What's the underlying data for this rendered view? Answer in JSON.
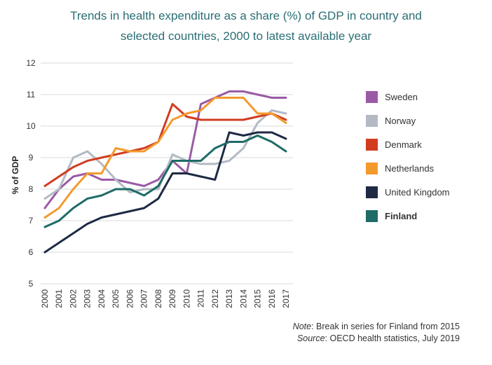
{
  "title": {
    "line1": "Trends in health expenditure as a share (%) of GDP in country and",
    "line2": "selected countries, 2000 to latest available year"
  },
  "notes": {
    "note_label": "Note",
    "note_text": ": Break in series for Finland from 2015",
    "source_label": "Source",
    "source_text": ": OECD health statistics, July 2019"
  },
  "chart_data": {
    "type": "line",
    "title": "Trends in health expenditure as a share (%) of GDP in country and selected countries, 2000 to latest available year",
    "xlabel": "",
    "ylabel": "% of GDP",
    "ylim": [
      5,
      12
    ],
    "yticks": [
      5,
      6,
      7,
      8,
      9,
      10,
      11,
      12
    ],
    "x": [
      "2000",
      "2001",
      "2002",
      "2003",
      "2004",
      "2005",
      "2006",
      "2007",
      "2008",
      "2009",
      "2010",
      "2011",
      "2012",
      "2013",
      "2014",
      "2015",
      "2016",
      "2017"
    ],
    "grid": "horizontal",
    "legend_position": "right",
    "series": [
      {
        "name": "Sweden",
        "color": "#9b5aa6",
        "bold": false,
        "values": [
          7.4,
          8.0,
          8.4,
          8.5,
          8.3,
          8.3,
          8.2,
          8.1,
          8.3,
          8.9,
          8.5,
          10.7,
          10.9,
          11.1,
          11.1,
          11.0,
          10.9,
          10.9
        ]
      },
      {
        "name": "Norway",
        "color": "#b3bac4",
        "bold": false,
        "values": [
          7.7,
          8.0,
          9.0,
          9.2,
          8.8,
          8.3,
          7.9,
          8.0,
          8.0,
          9.1,
          8.9,
          8.8,
          8.8,
          8.9,
          9.3,
          10.1,
          10.5,
          10.4
        ]
      },
      {
        "name": "Denmark",
        "color": "#d13c20",
        "bold": false,
        "values": [
          8.1,
          8.4,
          8.7,
          8.9,
          9.0,
          9.1,
          9.2,
          9.3,
          9.5,
          10.7,
          10.3,
          10.2,
          10.2,
          10.2,
          10.2,
          10.3,
          10.4,
          10.2
        ]
      },
      {
        "name": "Netherlands",
        "color": "#f39a2d",
        "bold": false,
        "values": [
          7.1,
          7.4,
          8.0,
          8.5,
          8.5,
          9.3,
          9.2,
          9.2,
          9.5,
          10.2,
          10.4,
          10.5,
          10.9,
          10.9,
          10.9,
          10.4,
          10.4,
          10.1
        ]
      },
      {
        "name": "United Kingdom",
        "color": "#1e2a44",
        "bold": false,
        "values": [
          6.0,
          6.3,
          6.6,
          6.9,
          7.1,
          7.2,
          7.3,
          7.4,
          7.7,
          8.5,
          8.5,
          8.4,
          8.3,
          9.8,
          9.7,
          9.8,
          9.8,
          9.6
        ]
      },
      {
        "name": "Finland",
        "color": "#1e6b67",
        "bold": true,
        "values": [
          6.8,
          7.0,
          7.4,
          7.7,
          7.8,
          8.0,
          8.0,
          7.8,
          8.1,
          8.9,
          8.9,
          8.9,
          9.3,
          9.5,
          9.5,
          9.7,
          9.5,
          9.2
        ]
      }
    ]
  }
}
